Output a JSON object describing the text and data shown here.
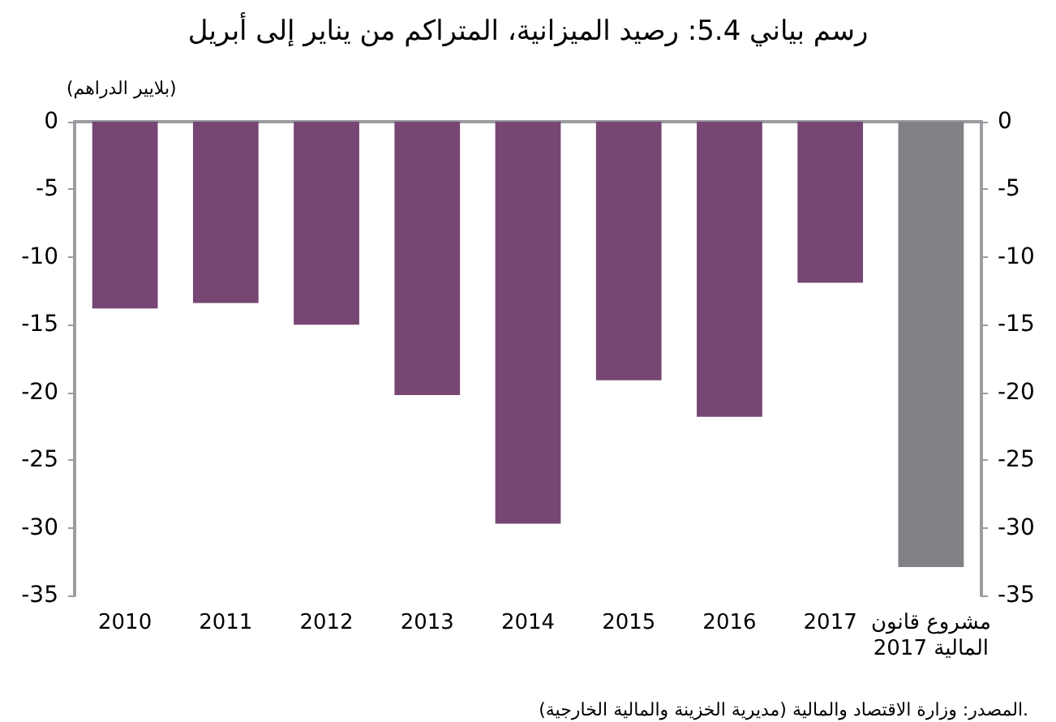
{
  "chart_data": {
    "type": "bar",
    "title": "رسم بياني 5.4: رصيد الميزانية، المتراكم من يناير إلى أبريل",
    "ylabel": "(بلايير الدراهم)",
    "annotations": [
      "المصدر: وزارة الاقتصاد والمالية (مديرية الخزينة والمالية الخارجية)."
    ],
    "categories": [
      "2010",
      "2011",
      "2012",
      "2013",
      "2014",
      "2015",
      "2016",
      "2017",
      "مشروع قانون المالية 2017"
    ],
    "values": [
      -13.8,
      -13.4,
      -15.0,
      -20.2,
      -29.7,
      -19.1,
      -21.8,
      -11.9,
      -32.9
    ],
    "colors": [
      "#774673",
      "#774673",
      "#774673",
      "#774673",
      "#774673",
      "#774673",
      "#774673",
      "#774673",
      "#808285"
    ],
    "ylim": [
      -35,
      0
    ],
    "yticks": [
      0,
      -5,
      -10,
      -15,
      -20,
      -25,
      -30,
      -35
    ],
    "y2lim": [
      -35,
      0
    ],
    "y2ticks": [
      0,
      -5,
      -10,
      -15,
      -20,
      -25,
      -30,
      -35
    ],
    "grid": false
  }
}
